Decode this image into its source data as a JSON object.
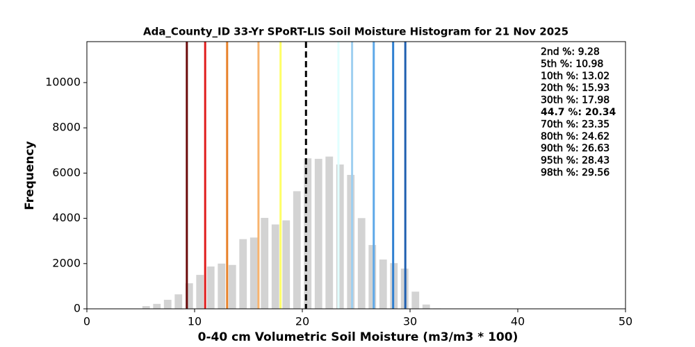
{
  "chart_data": {
    "type": "histogram",
    "title": "Ada_County_ID 33-Yr SPoRT-LIS Soil Moisture Histogram for 21 Nov 2025",
    "xlabel": "0-40 cm Volumetric Soil Moisture (m3/m3 * 100)",
    "ylabel": "Frequency",
    "bins": [
      5,
      6,
      7,
      8,
      9,
      10,
      11,
      12,
      13,
      14,
      15,
      16,
      17,
      18,
      19,
      20,
      21,
      22,
      23,
      24,
      25,
      26,
      27,
      28,
      29,
      30,
      31,
      32,
      33
    ],
    "values": [
      120,
      220,
      400,
      640,
      1130,
      1500,
      1870,
      2000,
      1940,
      3080,
      3150,
      4020,
      3730,
      3910,
      5200,
      6650,
      6630,
      6730,
      6380,
      5920,
      4010,
      2820,
      2180,
      2020,
      1780,
      760,
      190,
      20
    ],
    "color": "#d3d3d3",
    "xlim": [
      0,
      50
    ],
    "xticks": [
      0,
      10,
      20,
      30,
      40,
      50
    ],
    "ylim": [
      0,
      11810
    ],
    "yticks": [
      0,
      2000,
      4000,
      6000,
      8000,
      10000
    ],
    "percentiles": [
      {
        "label": "2nd %: 9.28",
        "value": 9.28,
        "color": "#6b0a0a",
        "style": "solid"
      },
      {
        "label": "5th %: 10.98",
        "value": 10.98,
        "color": "#e01c1c",
        "style": "solid"
      },
      {
        "label": "10th %: 13.02",
        "value": 13.02,
        "color": "#e8822a",
        "style": "solid"
      },
      {
        "label": "20th %: 15.93",
        "value": 15.93,
        "color": "#f8b46e",
        "style": "solid"
      },
      {
        "label": "30th %: 17.98",
        "value": 17.98,
        "color": "#ffff66",
        "style": "solid"
      },
      {
        "label": "44.7 %: 20.34",
        "value": 20.34,
        "color": "#000000",
        "style": "dashed"
      },
      {
        "label": "70th %: 23.35",
        "value": 23.35,
        "color": "#e0ffff",
        "style": "solid"
      },
      {
        "label": "80th %: 24.62",
        "value": 24.62,
        "color": "#9ecff0",
        "style": "solid"
      },
      {
        "label": "90th %: 26.63",
        "value": 26.63,
        "color": "#5ea8e8",
        "style": "solid"
      },
      {
        "label": "95th %: 28.43",
        "value": 28.43,
        "color": "#2f7fd0",
        "style": "solid"
      },
      {
        "label": "98th %: 29.56",
        "value": 29.56,
        "color": "#1f5fb0",
        "style": "solid"
      }
    ]
  }
}
